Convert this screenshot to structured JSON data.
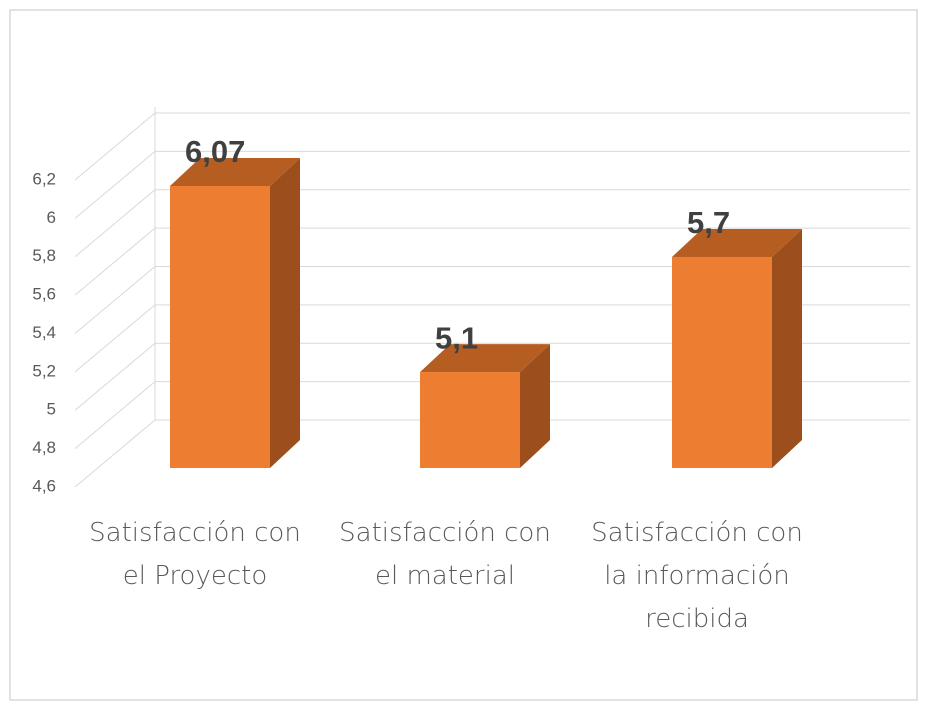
{
  "chart_data": {
    "type": "bar3d",
    "categories": [
      "Satisfacción con el Proyecto",
      "Satisfacción con el material",
      "Satisfacción con la información recibida"
    ],
    "values": [
      6.07,
      5.1,
      5.7
    ],
    "value_labels": [
      "6,07",
      "5,1",
      "5,7"
    ],
    "color": "#ed7d31",
    "ylim": [
      4.6,
      6.2
    ],
    "yticks": [
      {
        "value": 4.6,
        "label": "4,6"
      },
      {
        "value": 4.8,
        "label": "4,8"
      },
      5,
      {
        "value": 5.2,
        "label": "5,2"
      },
      {
        "value": 5.4,
        "label": "5,4"
      },
      {
        "value": 5.6,
        "label": "5,6"
      },
      {
        "value": 5.8,
        "label": "5,8"
      },
      6,
      {
        "value": 6.2,
        "label": "6,2"
      }
    ],
    "grid": true
  }
}
